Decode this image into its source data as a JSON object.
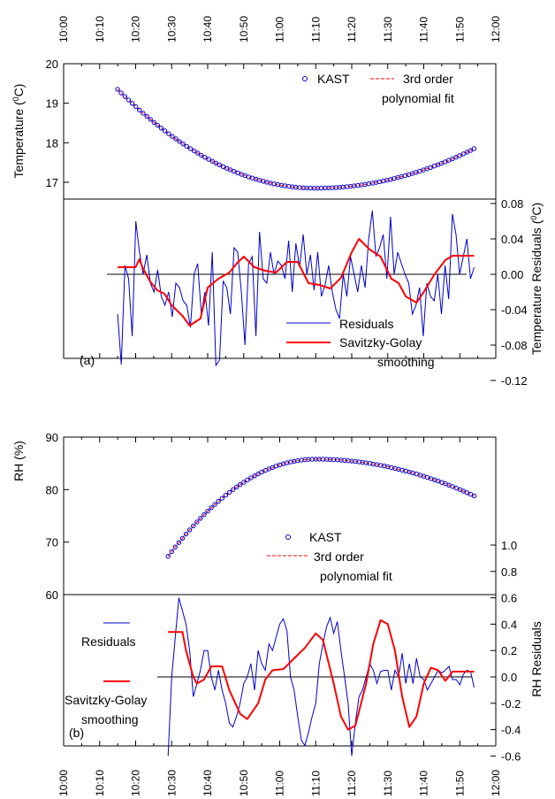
{
  "time_ticks": [
    "10:00",
    "10:10",
    "10:20",
    "10:30",
    "10:40",
    "10:50",
    "11:00",
    "11:10",
    "11:20",
    "11:30",
    "11:40",
    "11:50",
    "12:00"
  ],
  "chart_data": [
    {
      "type": "scatter",
      "panel": "(a)",
      "ylabel": "Temperature (⁰C)",
      "ylabel_base": "Temperature (",
      "ylabel_sup": "0",
      "ylabel_end": "C)",
      "y_ticks": [
        "17",
        "18",
        "19",
        "20"
      ],
      "ylim": [
        16.5,
        20
      ],
      "xlim": [
        "10:00",
        "12:00"
      ],
      "series": [
        {
          "name": "KAST",
          "marker": "open-circle",
          "color": "#0000cc",
          "x_start": "10:15",
          "x_end": "11:54",
          "count": 99,
          "model": {
            "vertex_x": "11:10",
            "vertex_y": 16.85,
            "left_y": 19.35,
            "right_y": 17.85
          }
        },
        {
          "name": "3rd order polynomial fit",
          "name_line1": "3rd order",
          "name_line2": "polynomial fit",
          "style": "dashed",
          "color": "#ff0000"
        }
      ],
      "legend_position": "top-right"
    },
    {
      "type": "line",
      "panel": "(a)",
      "ylabel": "Temperature  Residuals (⁰C)",
      "ylabel_base": "Temperature  Residuals (",
      "ylabel_sup": "0",
      "ylabel_end": "C)",
      "y_ticks": [
        "-0.12",
        "-0.08",
        "-0.04",
        "0.00",
        "0.04",
        "0.08"
      ],
      "ylim": [
        -0.12,
        0.1
      ],
      "series": [
        {
          "name": "Residuals",
          "color": "#0000cc",
          "x_start": "10:15",
          "x_end": "11:54",
          "values": [
            -0.045,
            -0.102,
            0.01,
            -0.005,
            -0.07,
            0.06,
            0.025,
            0.0,
            0.022,
            -0.01,
            -0.02,
            0.005,
            -0.025,
            -0.035,
            -0.02,
            -0.048,
            -0.01,
            -0.015,
            -0.03,
            -0.035,
            -0.06,
            0.0,
            0.012,
            -0.045,
            -0.02,
            -0.058,
            0.025,
            -0.103,
            -0.097,
            -0.008,
            -0.015,
            -0.045,
            0.03,
            0.025,
            -0.02,
            -0.08,
            0.012,
            0.02,
            -0.07,
            0.048,
            -0.005,
            -0.01,
            0.025,
            0.0,
            0.015,
            0.01,
            -0.005,
            0.038,
            -0.02,
            0.035,
            0.008,
            0.045,
            0.0,
            0.022,
            -0.018,
            0.025,
            -0.025,
            -0.012,
            0.01,
            -0.02,
            -0.04,
            -0.05,
            0.0,
            -0.025,
            0.02,
            0.0,
            -0.02,
            0.01,
            -0.015,
            0.04,
            0.072,
            0.02,
            0.03,
            0.045,
            -0.005,
            0.065,
            0.0,
            0.025,
            0.012,
            0.0,
            -0.01,
            -0.045,
            -0.035,
            -0.015,
            -0.07,
            -0.01,
            -0.025,
            -0.03,
            0.0,
            -0.045,
            0.01,
            -0.028,
            0.068,
            0.045,
            0.0,
            0.02,
            0.04,
            -0.005,
            0.008
          ]
        },
        {
          "name": "Savitzky-Golay smoothing",
          "name_line1": "Savitzky-Golay",
          "name_line2": "smoothing",
          "color": "#ff0000",
          "points": [
            [
              "10:15",
              0.008
            ],
            [
              "10:20",
              0.008
            ],
            [
              "10:21",
              0.017
            ],
            [
              "10:22",
              0.007
            ],
            [
              "10:24",
              -0.008
            ],
            [
              "10:26",
              -0.018
            ],
            [
              "10:28",
              -0.022
            ],
            [
              "10:30",
              -0.035
            ],
            [
              "10:33",
              -0.047
            ],
            [
              "10:35",
              -0.058
            ],
            [
              "10:38",
              -0.05
            ],
            [
              "10:40",
              -0.015
            ],
            [
              "10:43",
              -0.005
            ],
            [
              "10:46",
              0.002
            ],
            [
              "10:48",
              0.012
            ],
            [
              "10:50",
              0.02
            ],
            [
              "10:53",
              0.008
            ],
            [
              "10:56",
              0.004
            ],
            [
              "10:59",
              0.002
            ],
            [
              "11:02",
              0.014
            ],
            [
              "11:05",
              0.014
            ],
            [
              "11:08",
              -0.01
            ],
            [
              "11:11",
              -0.012
            ],
            [
              "11:14",
              -0.016
            ],
            [
              "11:17",
              -0.004
            ],
            [
              "11:20",
              0.025
            ],
            [
              "11:22",
              0.04
            ],
            [
              "11:25",
              0.028
            ],
            [
              "11:28",
              0.02
            ],
            [
              "11:31",
              -0.005
            ],
            [
              "11:33",
              -0.01
            ],
            [
              "11:35",
              -0.025
            ],
            [
              "11:38",
              -0.032
            ],
            [
              "11:40",
              -0.02
            ],
            [
              "11:43",
              0.0
            ],
            [
              "11:46",
              0.016
            ],
            [
              "11:48",
              0.021
            ],
            [
              "11:54",
              0.021
            ]
          ]
        }
      ],
      "annotation": "(a)"
    },
    {
      "type": "scatter",
      "panel": "(b)",
      "ylabel": "RH (%)",
      "y_ticks": [
        "60",
        "70",
        "80",
        "90"
      ],
      "ylim": [
        50,
        90
      ],
      "series": [
        {
          "name": "KAST",
          "marker": "open-circle",
          "color": "#0000cc",
          "x_start": "10:29",
          "x_end": "11:54",
          "count": 86,
          "model": {
            "start_y": 67.3,
            "vertex_x": "11:10",
            "vertex_y": 85.8,
            "end_y": 78.8
          }
        },
        {
          "name": "3rd order polynomial fit",
          "name_line1": "3rd order",
          "name_line2": "polynomial fit",
          "style": "dashed",
          "color": "#ff0000"
        }
      ]
    },
    {
      "type": "line",
      "panel": "(b)",
      "ylabel": "RH Residuals",
      "y_ticks": [
        "-0.6",
        "-0.4",
        "-0.2",
        "0.0",
        "0.2",
        "0.4",
        "0.6",
        "0.8",
        "1.0"
      ],
      "ylim": [
        -0.65,
        1.2
      ],
      "series": [
        {
          "name": "Residuals",
          "color": "#0000cc",
          "x_start": "10:29",
          "x_end": "11:54",
          "values": [
            -0.6,
            0.0,
            0.3,
            0.6,
            0.5,
            0.4,
            0.2,
            -0.15,
            -0.05,
            0.05,
            0.2,
            0.2,
            0.0,
            -0.1,
            0.05,
            -0.1,
            -0.2,
            -0.35,
            -0.38,
            -0.3,
            -0.2,
            -0.05,
            0.0,
            0.1,
            -0.1,
            0.2,
            0.1,
            0.05,
            0.25,
            0.2,
            0.3,
            0.4,
            0.44,
            0.35,
            0.0,
            -0.1,
            -0.3,
            -0.48,
            -0.52,
            -0.42,
            -0.3,
            -0.2,
            0.1,
            0.25,
            0.38,
            0.45,
            0.33,
            0.42,
            0.2,
            0.0,
            -0.2,
            -0.6,
            -0.35,
            -0.15,
            -0.1,
            0.0,
            0.1,
            0.05,
            -0.05,
            0.04,
            0.05,
            0.05,
            -0.1,
            0.05,
            0.0,
            0.18,
            -0.05,
            0.1,
            -0.05,
            0.14,
            0.0,
            -0.02,
            -0.1,
            -0.05,
            0.0,
            0.05,
            0.03,
            0.05,
            0.08,
            -0.02,
            -0.02,
            -0.06,
            0.02,
            0.05,
            0.04,
            -0.08
          ]
        },
        {
          "name": "Savitzky-Golay smoothing",
          "name_line1": "Savitzky-Golay",
          "name_line2": "smoothing",
          "color": "#ff0000",
          "points": [
            [
              "10:29",
              0.34
            ],
            [
              "10:33",
              0.34
            ],
            [
              "10:34",
              0.2
            ],
            [
              "10:36",
              0.0
            ],
            [
              "10:37",
              -0.05
            ],
            [
              "10:39",
              -0.02
            ],
            [
              "10:41",
              0.08
            ],
            [
              "10:44",
              0.08
            ],
            [
              "10:46",
              -0.1
            ],
            [
              "10:49",
              -0.28
            ],
            [
              "10:51",
              -0.32
            ],
            [
              "10:54",
              -0.2
            ],
            [
              "10:56",
              -0.02
            ],
            [
              "10:58",
              0.05
            ],
            [
              "11:01",
              0.06
            ],
            [
              "11:04",
              0.14
            ],
            [
              "11:07",
              0.22
            ],
            [
              "11:10",
              0.33
            ],
            [
              "11:12",
              0.28
            ],
            [
              "11:15",
              -0.05
            ],
            [
              "11:17",
              -0.3
            ],
            [
              "11:19",
              -0.4
            ],
            [
              "11:21",
              -0.37
            ],
            [
              "11:24",
              -0.05
            ],
            [
              "11:26",
              0.25
            ],
            [
              "11:28",
              0.43
            ],
            [
              "11:30",
              0.4
            ],
            [
              "11:32",
              0.2
            ],
            [
              "11:34",
              -0.15
            ],
            [
              "11:36",
              -0.38
            ],
            [
              "11:38",
              -0.3
            ],
            [
              "11:40",
              -0.05
            ],
            [
              "11:42",
              0.07
            ],
            [
              "11:44",
              0.05
            ],
            [
              "11:46",
              -0.03
            ],
            [
              "11:48",
              0.04
            ],
            [
              "11:54",
              0.04
            ]
          ]
        }
      ],
      "annotation": "(b)"
    }
  ]
}
